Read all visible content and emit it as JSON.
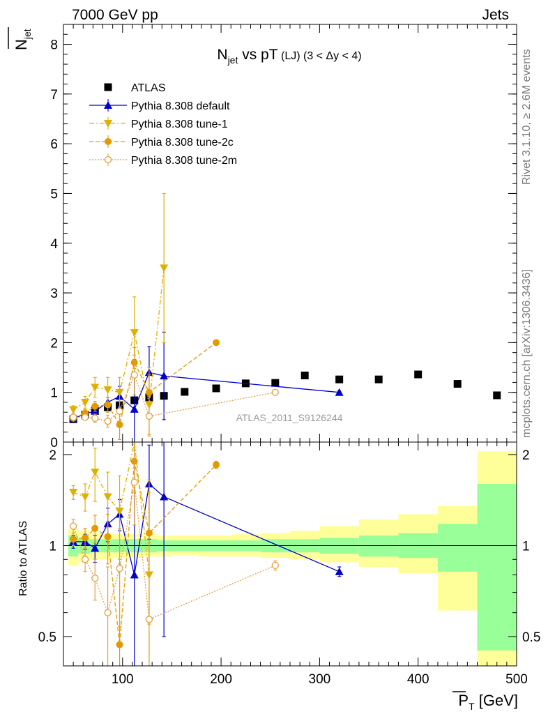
{
  "header": {
    "left": "7000 GeV pp",
    "right": "Jets"
  },
  "side": {
    "rivet": "Rivet 3.1.10, ≥ 2.6M events",
    "mcplots": "mcplots.cern.ch [arXiv:1306.3436]"
  },
  "chart_data": [
    {
      "type": "scatter",
      "title_main": "N",
      "title_sub": "jet",
      "title_rest": " vs pT",
      "title_small": " (LJ) (3 < Δy < 4)",
      "ylabel_main": "N",
      "ylabel_sub": "jet",
      "watermark": "ATLAS_2011_S9126244",
      "xlim": [
        40,
        500
      ],
      "ylim": [
        0,
        8.4
      ],
      "yticks": [
        0,
        1,
        2,
        3,
        4,
        5,
        6,
        7,
        8
      ],
      "series": [
        {
          "name": "ATLAS",
          "key": "atlas",
          "color": "#000000",
          "x": [
            50,
            62,
            72,
            85,
            97,
            112,
            127,
            142,
            163,
            195,
            225,
            255,
            285,
            320,
            360,
            400,
            440,
            480
          ],
          "y": [
            0.46,
            0.55,
            0.63,
            0.7,
            0.74,
            0.84,
            0.9,
            0.93,
            1.01,
            1.08,
            1.18,
            1.19,
            1.34,
            1.26,
            1.26,
            1.36,
            1.17,
            0.94
          ]
        },
        {
          "name": "Pythia 8.308 default",
          "key": "default",
          "color": "#0000cc",
          "x": [
            50,
            62,
            72,
            85,
            97,
            112,
            127,
            142,
            320
          ],
          "y": [
            0.47,
            0.57,
            0.62,
            0.8,
            0.92,
            0.66,
            1.4,
            1.33,
            1.0
          ],
          "err": [
            0.05,
            0.06,
            0.07,
            0.1,
            0.2,
            1.0,
            0.52,
            0.88,
            0.03
          ]
        },
        {
          "name": "Pythia 8.308 tune-1",
          "key": "tune1",
          "color": "#e0b000",
          "x": [
            50,
            62,
            72,
            85,
            97,
            112,
            127,
            142
          ],
          "y": [
            0.65,
            0.8,
            1.1,
            1.05,
            1.0,
            2.2,
            0.75,
            3.5
          ],
          "err": [
            0.08,
            0.12,
            0.2,
            0.25,
            0.3,
            0.72,
            0.6,
            1.5
          ]
        },
        {
          "name": "Pythia 8.308 tune-2c",
          "key": "tune2c",
          "color": "#e39a00",
          "x": [
            50,
            62,
            72,
            85,
            97,
            112,
            127,
            195
          ],
          "y": [
            0.48,
            0.58,
            0.72,
            0.75,
            0.35,
            1.6,
            1.0,
            2.0
          ],
          "err": [
            0.05,
            0.07,
            0.1,
            0.15,
            0.3,
            0.3,
            0.5,
            0.05
          ]
        },
        {
          "name": "Pythia 8.308 tune-2m",
          "key": "tune2m",
          "color": "#e0a040",
          "x": [
            50,
            62,
            72,
            85,
            97,
            112,
            127,
            255
          ],
          "y": [
            0.5,
            0.5,
            0.48,
            0.42,
            0.62,
            1.35,
            0.52,
            1.0
          ],
          "err": [
            0.05,
            0.06,
            0.08,
            0.12,
            0.2,
            0.4,
            0.4,
            0.03
          ]
        }
      ]
    },
    {
      "type": "scatter",
      "ylabel": "Ratio to ATLAS",
      "xlabel_main": "P",
      "xlabel_sub": "T",
      "xlabel_rest": " [GeV]",
      "xlim": [
        40,
        500
      ],
      "ylim": [
        0.4,
        2.2
      ],
      "xticks": [
        100,
        200,
        300,
        400,
        500
      ],
      "yticks_left": [
        0.5,
        1,
        2
      ],
      "yticks_right": [
        0.5,
        1,
        2
      ],
      "bands": {
        "edges": [
          45,
          55,
          67,
          78,
          90,
          104,
          120,
          135,
          150,
          176,
          210,
          240,
          270,
          300,
          340,
          380,
          420,
          460,
          500
        ],
        "green_lo": [
          0.92,
          0.94,
          0.95,
          0.95,
          0.95,
          0.95,
          0.95,
          0.96,
          0.96,
          0.96,
          0.96,
          0.95,
          0.95,
          0.94,
          0.92,
          0.91,
          0.82,
          0.45
        ],
        "green_hi": [
          1.08,
          1.06,
          1.05,
          1.05,
          1.05,
          1.05,
          1.05,
          1.04,
          1.04,
          1.04,
          1.04,
          1.05,
          1.05,
          1.06,
          1.08,
          1.1,
          1.18,
          1.6
        ],
        "yellow_lo": [
          0.86,
          0.88,
          0.9,
          0.9,
          0.91,
          0.91,
          0.92,
          0.92,
          0.93,
          0.92,
          0.92,
          0.91,
          0.9,
          0.88,
          0.85,
          0.81,
          0.61,
          0.33
        ],
        "yellow_hi": [
          1.14,
          1.12,
          1.1,
          1.1,
          1.09,
          1.09,
          1.09,
          1.08,
          1.08,
          1.08,
          1.09,
          1.1,
          1.12,
          1.16,
          1.22,
          1.27,
          1.35,
          2.05
        ]
      },
      "series": [
        {
          "name": "Pythia 8.308 default",
          "key": "default",
          "color": "#0000cc",
          "x": [
            50,
            62,
            72,
            85,
            97,
            112,
            127,
            142,
            320
          ],
          "y": [
            1.03,
            1.03,
            0.98,
            1.18,
            1.27,
            0.8,
            1.6,
            1.45,
            0.82
          ],
          "err": [
            0.05,
            0.06,
            0.1,
            0.15,
            0.15,
            1.1,
            0.55,
            0.95,
            0.03
          ]
        },
        {
          "name": "Pythia 8.308 tune-1",
          "key": "tune1",
          "color": "#e0b000",
          "x": [
            50,
            62,
            72,
            85,
            97,
            112,
            127
          ],
          "y": [
            1.5,
            1.45,
            1.75,
            1.45,
            1.3,
            2.6,
            0.8
          ],
          "err": [
            0.08,
            0.15,
            0.35,
            0.3,
            0.4,
            0.8,
            0.7
          ]
        },
        {
          "name": "Pythia 8.308 tune-2c",
          "key": "tune2c",
          "color": "#e39a00",
          "x": [
            50,
            62,
            72,
            85,
            97,
            112,
            127,
            195
          ],
          "y": [
            1.05,
            1.06,
            1.14,
            1.07,
            0.47,
            1.9,
            1.1,
            1.85
          ],
          "err": [
            0.05,
            0.08,
            0.12,
            0.2,
            0.4,
            0.4,
            0.55,
            0.05
          ]
        },
        {
          "name": "Pythia 8.308 tune-2m",
          "key": "tune2m",
          "color": "#e0a040",
          "x": [
            50,
            62,
            72,
            85,
            97,
            112,
            127,
            255
          ],
          "y": [
            1.16,
            0.9,
            0.78,
            0.6,
            0.84,
            1.62,
            0.57,
            0.86
          ],
          "err": [
            0.06,
            0.08,
            0.12,
            0.25,
            0.3,
            0.45,
            0.45,
            0.03
          ]
        }
      ]
    }
  ]
}
